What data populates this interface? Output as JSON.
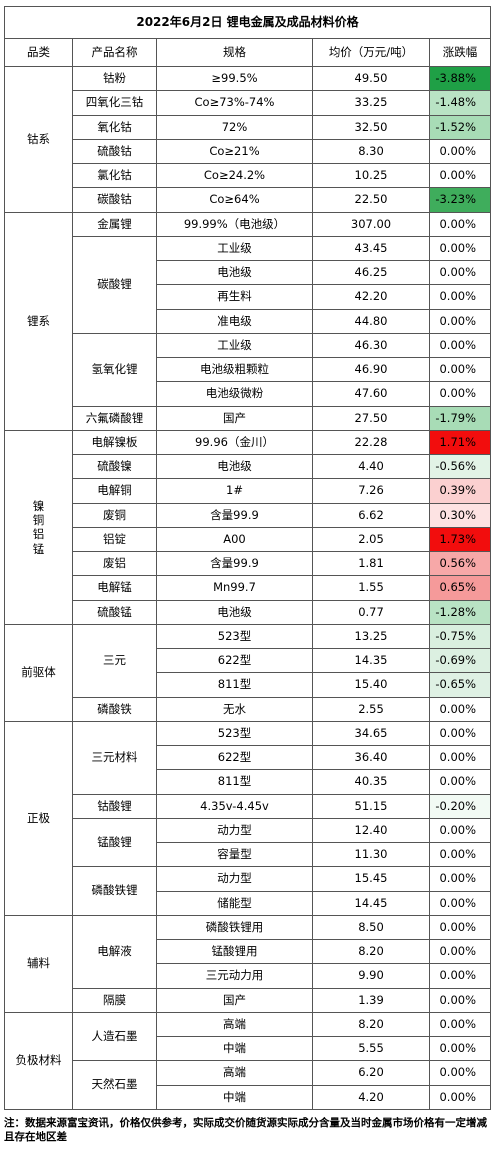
{
  "title": "2022年6月2日 锂电金属及成品材料价格",
  "headers": [
    "品类",
    "产品名称",
    "规格",
    "均价（万元/吨）",
    "涨跌幅"
  ],
  "categories": [
    {
      "name": "钴系",
      "vertical": false,
      "products": [
        {
          "name": "钴粉",
          "rows": [
            {
              "spec": "≥99.5%",
              "price": "49.50",
              "change": "-3.88%",
              "bg": "#1fa046"
            }
          ]
        },
        {
          "name": "四氧化三钴",
          "rows": [
            {
              "spec": "Co≥73%-74%",
              "price": "33.25",
              "change": "-1.48%",
              "bg": "#b9e3c4"
            }
          ]
        },
        {
          "name": "氧化钴",
          "rows": [
            {
              "spec": "72%",
              "price": "32.50",
              "change": "-1.52%",
              "bg": "#a8dcb6"
            }
          ]
        },
        {
          "name": "硫酸钴",
          "rows": [
            {
              "spec": "Co≥21%",
              "price": "8.30",
              "change": "0.00%",
              "bg": "#ffffff"
            }
          ]
        },
        {
          "name": "氯化钴",
          "rows": [
            {
              "spec": "Co≥24.2%",
              "price": "10.25",
              "change": "0.00%",
              "bg": "#ffffff"
            }
          ]
        },
        {
          "name": "碳酸钴",
          "rows": [
            {
              "spec": "Co≥64%",
              "price": "22.50",
              "change": "-3.23%",
              "bg": "#3fad5c"
            }
          ]
        }
      ]
    },
    {
      "name": "锂系",
      "vertical": false,
      "products": [
        {
          "name": "金属锂",
          "merged": true,
          "rows": [
            {
              "spec": "99.99%（电池级）",
              "price": "307.00",
              "change": "0.00%",
              "bg": "#ffffff"
            }
          ]
        },
        {
          "name": "碳酸锂",
          "rows": [
            {
              "spec": "工业级",
              "price": "43.45",
              "change": "0.00%",
              "bg": "#ffffff"
            },
            {
              "spec": "电池级",
              "price": "46.25",
              "change": "0.00%",
              "bg": "#ffffff"
            },
            {
              "spec": "再生料",
              "price": "42.20",
              "change": "0.00%",
              "bg": "#ffffff"
            },
            {
              "spec": "准电级",
              "price": "44.80",
              "change": "0.00%",
              "bg": "#ffffff"
            }
          ]
        },
        {
          "name": "氢氧化锂",
          "rows": [
            {
              "spec": "工业级",
              "price": "46.30",
              "change": "0.00%",
              "bg": "#ffffff"
            },
            {
              "spec": "电池级粗颗粒",
              "price": "46.90",
              "change": "0.00%",
              "bg": "#ffffff"
            },
            {
              "spec": "电池级微粉",
              "price": "47.60",
              "change": "0.00%",
              "bg": "#ffffff"
            }
          ]
        },
        {
          "name": "六氟磷酸锂",
          "rows": [
            {
              "spec": "国产",
              "price": "27.50",
              "change": "-1.79%",
              "bg": "#a8dcb6"
            }
          ]
        }
      ]
    },
    {
      "name": "镍铜铝锰",
      "vertical": true,
      "products": [
        {
          "name": "电解镍板",
          "merged": true,
          "rows": [
            {
              "spec": "99.96（金川）",
              "price": "22.28",
              "change": "1.71%",
              "bg": "#f20d0d"
            }
          ]
        },
        {
          "name": "硫酸镍",
          "rows": [
            {
              "spec": "电池级",
              "price": "4.40",
              "change": "-0.56%",
              "bg": "#e2f3e6"
            }
          ]
        },
        {
          "name": "电解铜",
          "rows": [
            {
              "spec": "1#",
              "price": "7.26",
              "change": "0.39%",
              "bg": "#fbd0d0"
            }
          ]
        },
        {
          "name": "废铜",
          "rows": [
            {
              "spec": "含量99.9",
              "price": "6.62",
              "change": "0.30%",
              "bg": "#fde3e3"
            }
          ]
        },
        {
          "name": "铝锭",
          "rows": [
            {
              "spec": "A00",
              "price": "2.05",
              "change": "1.73%",
              "bg": "#f20d0d"
            }
          ]
        },
        {
          "name": "废铝",
          "rows": [
            {
              "spec": "含量99.9",
              "price": "1.81",
              "change": "0.56%",
              "bg": "#f7a8a8"
            }
          ]
        },
        {
          "name": "电解锰",
          "rows": [
            {
              "spec": "Mn99.7",
              "price": "1.55",
              "change": "0.65%",
              "bg": "#f59a9a"
            }
          ]
        },
        {
          "name": "硫酸锰",
          "rows": [
            {
              "spec": "电池级",
              "price": "0.77",
              "change": "-1.28%",
              "bg": "#b9e3c4"
            }
          ]
        }
      ]
    },
    {
      "name": "前驱体",
      "vertical": false,
      "products": [
        {
          "name": "三元",
          "rows": [
            {
              "spec": "523型",
              "price": "13.25",
              "change": "-0.75%",
              "bg": "#d9efdf"
            },
            {
              "spec": "622型",
              "price": "14.35",
              "change": "-0.69%",
              "bg": "#dcf0e1"
            },
            {
              "spec": "811型",
              "price": "15.40",
              "change": "-0.65%",
              "bg": "#dff1e4"
            }
          ]
        },
        {
          "name": "磷酸铁",
          "rows": [
            {
              "spec": "无水",
              "price": "2.55",
              "change": "0.00%",
              "bg": "#ffffff"
            }
          ]
        }
      ]
    },
    {
      "name": "正极",
      "vertical": false,
      "products": [
        {
          "name": "三元材料",
          "rows": [
            {
              "spec": "523型",
              "price": "34.65",
              "change": "0.00%",
              "bg": "#ffffff"
            },
            {
              "spec": "622型",
              "price": "36.40",
              "change": "0.00%",
              "bg": "#ffffff"
            },
            {
              "spec": "811型",
              "price": "40.35",
              "change": "0.00%",
              "bg": "#ffffff"
            }
          ]
        },
        {
          "name": "钴酸锂",
          "rows": [
            {
              "spec": "4.35v-4.45v",
              "price": "51.15",
              "change": "-0.20%",
              "bg": "#f2faf4"
            }
          ]
        },
        {
          "name": "锰酸锂",
          "rows": [
            {
              "spec": "动力型",
              "price": "12.40",
              "change": "0.00%",
              "bg": "#ffffff"
            },
            {
              "spec": "容量型",
              "price": "11.30",
              "change": "0.00%",
              "bg": "#ffffff"
            }
          ]
        },
        {
          "name": "磷酸铁锂",
          "rows": [
            {
              "spec": "动力型",
              "price": "15.45",
              "change": "0.00%",
              "bg": "#ffffff"
            },
            {
              "spec": "储能型",
              "price": "14.45",
              "change": "0.00%",
              "bg": "#ffffff"
            }
          ]
        }
      ]
    },
    {
      "name": "辅料",
      "vertical": false,
      "products": [
        {
          "name": "电解液",
          "rows": [
            {
              "spec": "磷酸铁锂用",
              "price": "8.50",
              "change": "0.00%",
              "bg": "#ffffff"
            },
            {
              "spec": "锰酸锂用",
              "price": "8.20",
              "change": "0.00%",
              "bg": "#ffffff"
            },
            {
              "spec": "三元动力用",
              "price": "9.90",
              "change": "0.00%",
              "bg": "#ffffff"
            }
          ]
        },
        {
          "name": "隔膜",
          "rows": [
            {
              "spec": "国产",
              "price": "1.39",
              "change": "0.00%",
              "bg": "#ffffff"
            }
          ]
        }
      ]
    },
    {
      "name": "负极材料",
      "vertical": false,
      "products": [
        {
          "name": "人造石墨",
          "rows": [
            {
              "spec": "高端",
              "price": "8.20",
              "change": "0.00%",
              "bg": "#ffffff"
            },
            {
              "spec": "中端",
              "price": "5.55",
              "change": "0.00%",
              "bg": "#ffffff"
            }
          ]
        },
        {
          "name": "天然石墨",
          "rows": [
            {
              "spec": "高端",
              "price": "6.20",
              "change": "0.00%",
              "bg": "#ffffff"
            },
            {
              "spec": "中端",
              "price": "4.20",
              "change": "0.00%",
              "bg": "#ffffff"
            }
          ]
        }
      ]
    }
  ],
  "note": "注：数据来源富宝资讯，价格仅供参考，实际成交价随货源实际成分含量及当时金属市场价格有一定增减且存在地区差"
}
